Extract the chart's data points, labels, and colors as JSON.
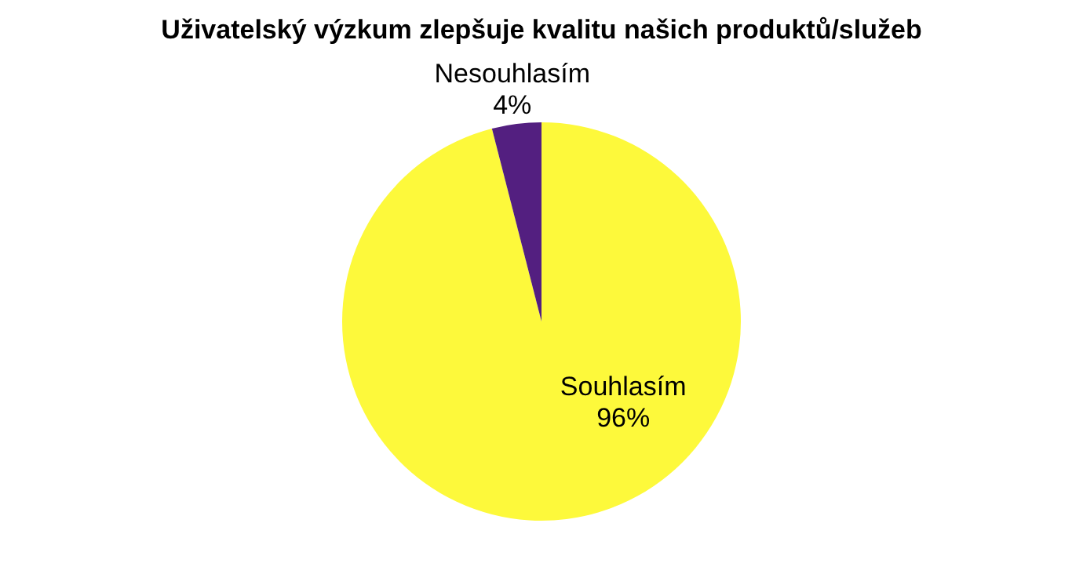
{
  "chart_data": {
    "type": "pie",
    "title": "Uživatelský výzkum zlepšuje kvalitu našich produktů/služeb",
    "categories": [
      "Souhlasím",
      "Nesouhlasím"
    ],
    "values": [
      96,
      4
    ],
    "colors": [
      "#fdf93b",
      "#531f80"
    ],
    "value_labels": [
      "96%",
      "4%"
    ],
    "legend": false
  }
}
